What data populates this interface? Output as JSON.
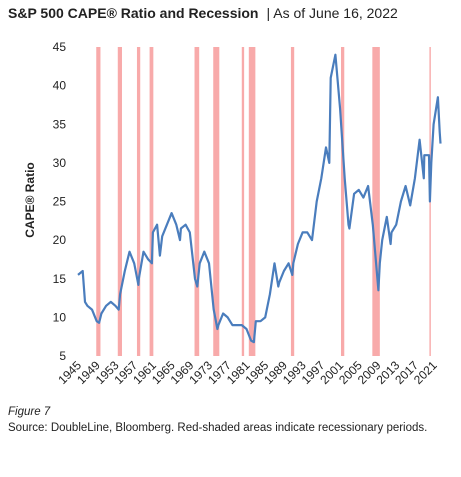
{
  "chart_data": {
    "type": "line",
    "title": "S&P 500 CAPE® Ratio and Recession",
    "subtitle": "|  As of June 16, 2022",
    "y_label": "CAPE® Ratio",
    "figure_label": "Figure 7",
    "source": "Source: DoubleLine, Bloomberg. Red-shaded areas indicate recessionary periods.",
    "color": "#4a7dbd",
    "recession_color": "#f8aaaa",
    "x": [
      1945,
      1946,
      1946.5,
      1947,
      1948,
      1949,
      1949.5,
      1950,
      1951,
      1952,
      1953,
      1953.7,
      1954,
      1955,
      1956,
      1957,
      1957.9,
      1958,
      1959,
      1960,
      1960.8,
      1961,
      1961.9,
      1962.5,
      1963,
      1964,
      1965,
      1966,
      1966.8,
      1967,
      1968,
      1968.9,
      1970,
      1970.5,
      1971,
      1972,
      1973,
      1974,
      1974.8,
      1975,
      1976,
      1977,
      1978,
      1979,
      1980,
      1981,
      1982,
      1982.6,
      1983,
      1984,
      1985,
      1986,
      1987,
      1987.8,
      1988,
      1989,
      1990,
      1990.8,
      1991,
      1992,
      1993,
      1994,
      1995,
      1996,
      1997,
      1998,
      1998.7,
      1999,
      2000,
      2001,
      2002,
      2002.8,
      2003,
      2004,
      2005,
      2006,
      2007,
      2008,
      2009.2,
      2009.5,
      2010,
      2011,
      2011.8,
      2012,
      2013,
      2014,
      2015,
      2016,
      2017,
      2018,
      2018.9,
      2019,
      2020,
      2020.2,
      2020.5,
      2021,
      2021.9,
      2022.3,
      2022.46
    ],
    "values": [
      15.5,
      16,
      12,
      11.5,
      11,
      9.5,
      9.3,
      10.5,
      11.5,
      12,
      11.5,
      11,
      13,
      16,
      18.5,
      17,
      14.2,
      15,
      18.5,
      17.5,
      17,
      21,
      22,
      18,
      20.5,
      22,
      23.5,
      22,
      20,
      21.5,
      22,
      21,
      15,
      14,
      17,
      18.5,
      17,
      11,
      8.5,
      9,
      10.5,
      10,
      9,
      9,
      9,
      8.5,
      7,
      6.8,
      9.5,
      9.5,
      10,
      13,
      17,
      14,
      14.5,
      16,
      17,
      15.5,
      17,
      19.5,
      21,
      21,
      20,
      25,
      28,
      32,
      30,
      41,
      44,
      37,
      28,
      22,
      21.5,
      26,
      26.5,
      25.5,
      27,
      22,
      13.5,
      17,
      20,
      23,
      19.5,
      21,
      22,
      25,
      27,
      24.5,
      28,
      33,
      28,
      31,
      31,
      25,
      30,
      35,
      38.5,
      34,
      32.5
    ],
    "recessions": [
      [
        1948.9,
        1949.8
      ],
      [
        1953.5,
        1954.4
      ],
      [
        1957.6,
        1958.3
      ],
      [
        1960.3,
        1961.1
      ],
      [
        1969.9,
        1970.9
      ],
      [
        1973.9,
        1975.2
      ],
      [
        1980,
        1980.5
      ],
      [
        1981.5,
        1982.9
      ],
      [
        1990.5,
        1991.2
      ],
      [
        2001.2,
        2001.9
      ],
      [
        2007.9,
        2009.5
      ],
      [
        2020.1,
        2020.4
      ]
    ],
    "xlim": [
      1945,
      2023
    ],
    "xticks": [
      1945,
      1949,
      1953,
      1957,
      1961,
      1965,
      1969,
      1973,
      1977,
      1981,
      1985,
      1989,
      1993,
      1997,
      2001,
      2005,
      2009,
      2013,
      2017,
      2021
    ],
    "ylim": [
      5,
      45
    ],
    "yticks": [
      5,
      10,
      15,
      20,
      25,
      30,
      35,
      40,
      45
    ],
    "grid": false
  }
}
